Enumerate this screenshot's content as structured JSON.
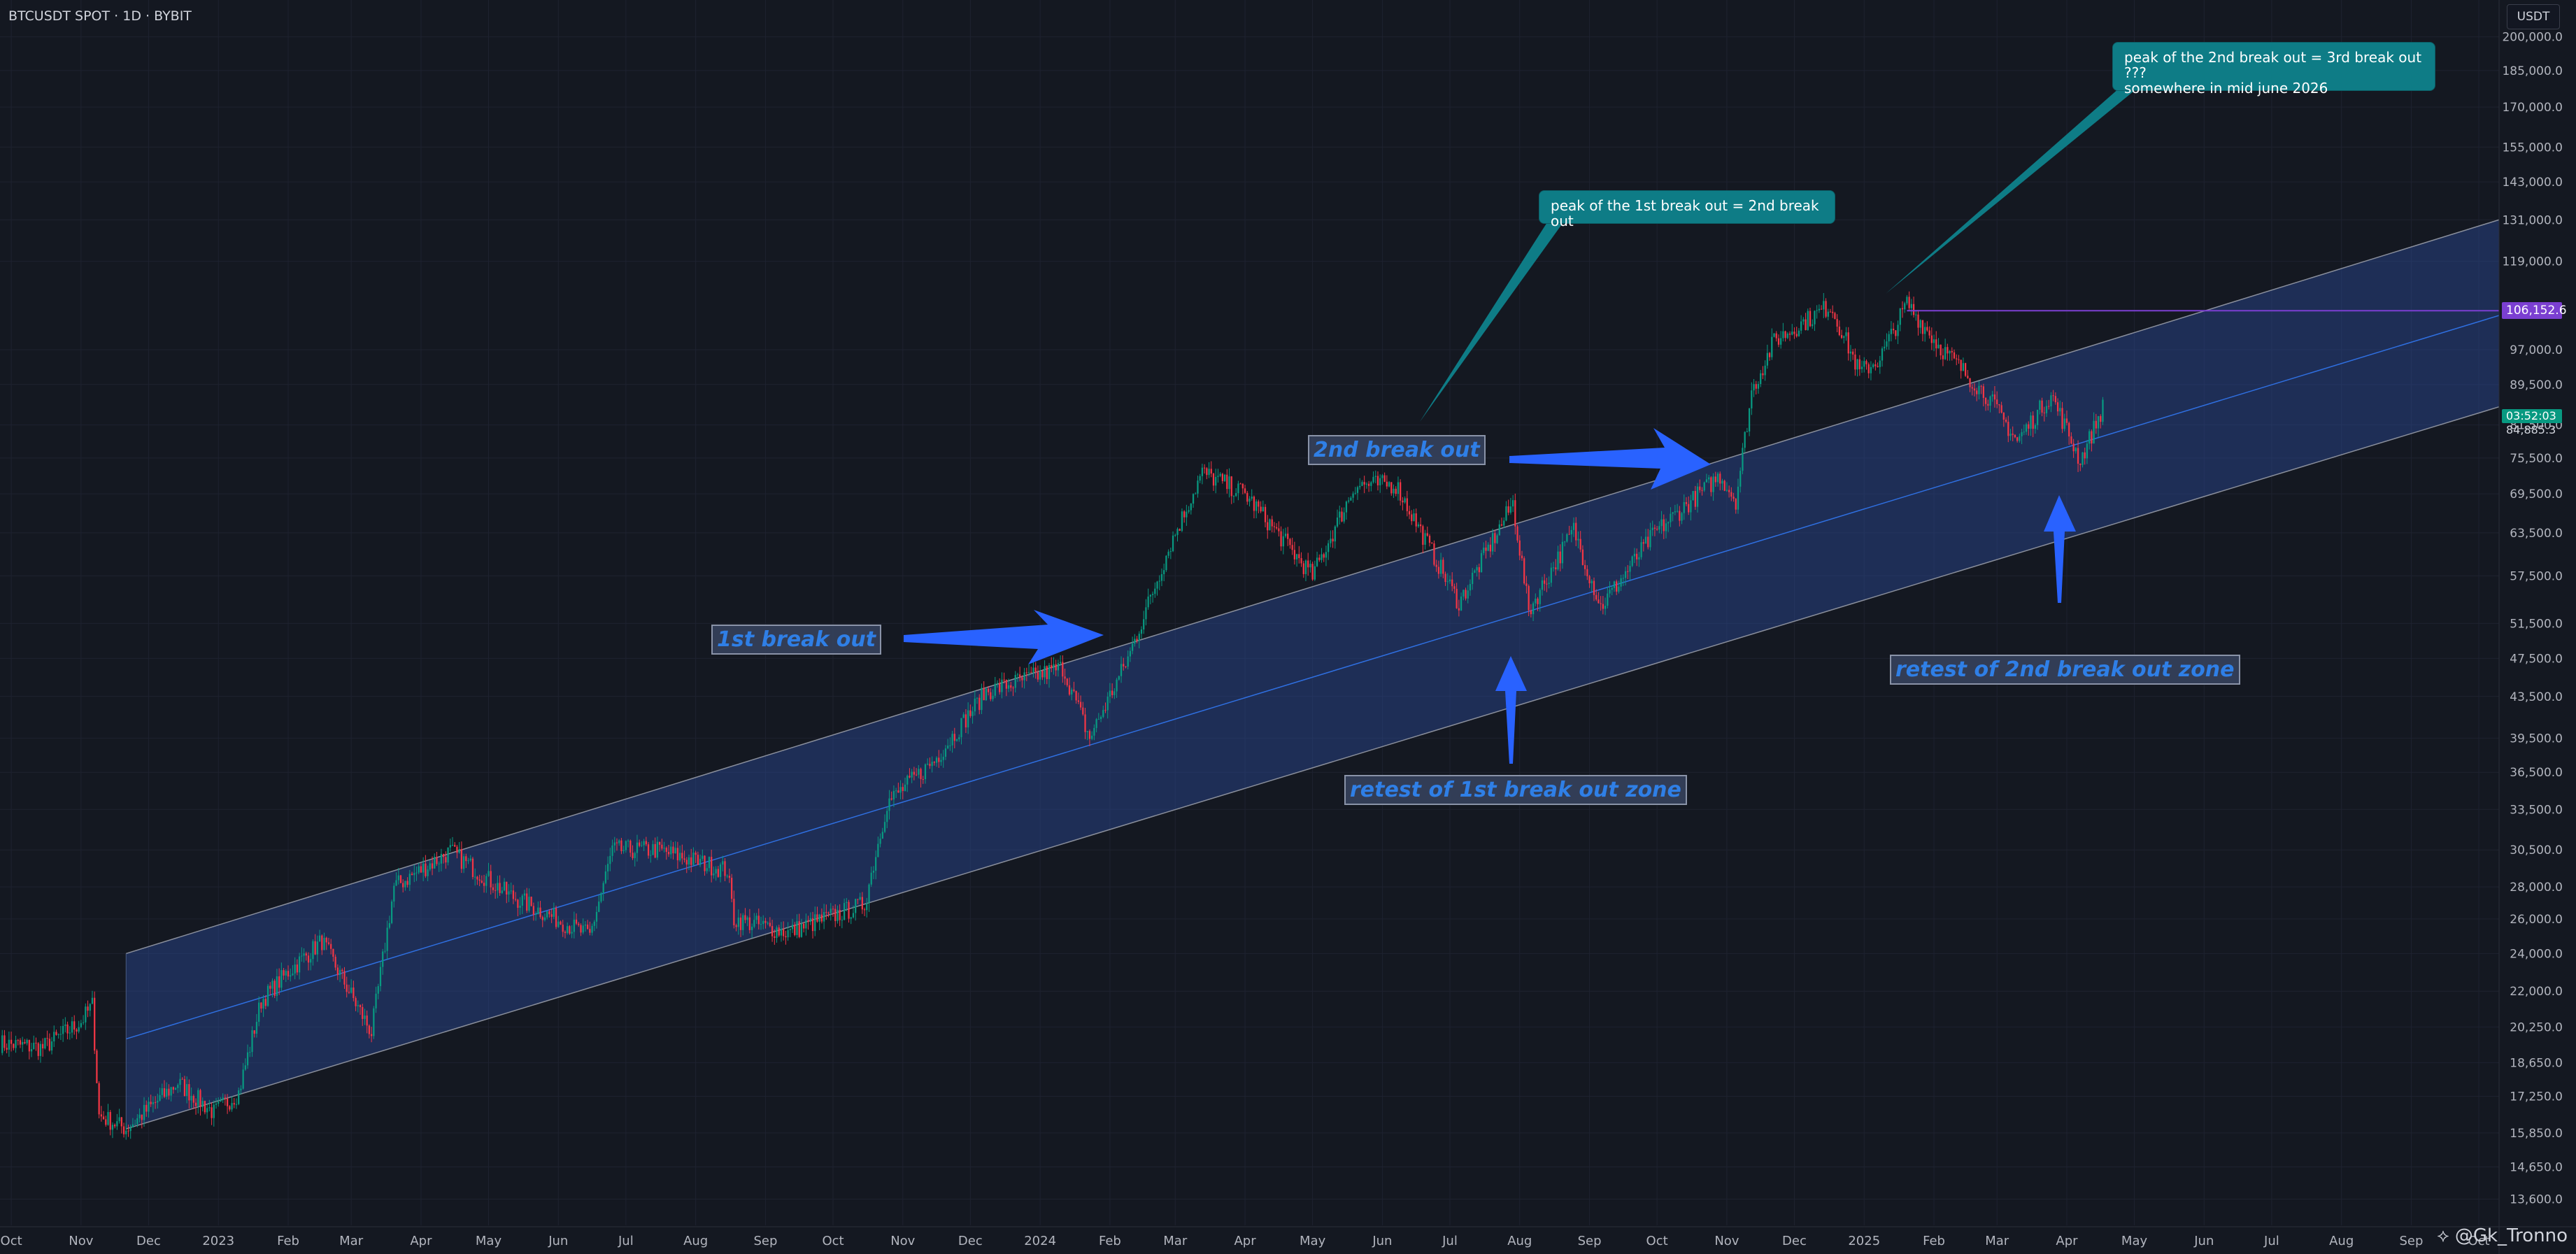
{
  "header": {
    "symbol": "BTCUSDT SPOT · 1D · BYBIT",
    "currency_button": "USDT"
  },
  "price_badges": {
    "level": "106,152.6",
    "last": "84,885.3",
    "countdown": "03:52:03",
    "level_color": "#7b3fd1",
    "last_color": "#089981"
  },
  "annotations": {
    "note_1": "peak of the 1st break out = 2nd break out",
    "note_2": "peak of the 2nd break out = 3rd break out  ???\nsomewhere in mid june 2026",
    "label_1st": "1st break out",
    "label_2nd": "2nd break out",
    "label_retest1": "retest of 1st break out zone",
    "label_retest2": "retest of 2nd break out zone"
  },
  "watermark": "@Gk_Tronno",
  "colors": {
    "background": "#141821",
    "up_candle": "#089981",
    "down_candle": "#f23645",
    "channel_fill": "#2d4ea0",
    "arrow": "#2962ff",
    "note_fill": "#0e7c86"
  },
  "icons": {
    "watermark_logo": "tradingview-logo-icon"
  },
  "chart_data": {
    "type": "candlestick",
    "title": "BTCUSDT SPOT · 1D · BYBIT",
    "y_scale": "log",
    "ylim": [
      12800,
      215000
    ],
    "y_ticks": [
      "200,000.0",
      "185,000.0",
      "170,000.0",
      "155,000.0",
      "143,000.0",
      "131,000.0",
      "119,000.0",
      "97,000.0",
      "89,500.0",
      "81,500.0",
      "75,500.0",
      "69,500.0",
      "63,500.0",
      "57,500.0",
      "51,500.0",
      "47,500.0",
      "43,500.0",
      "39,500.0",
      "36,500.0",
      "33,500.0",
      "30,500.0",
      "28,000.0",
      "26,000.0",
      "24,000.0",
      "22,000.0",
      "20,250.0",
      "18,650.0",
      "17,250.0",
      "15,850.0",
      "14,650.0",
      "13,600.0"
    ],
    "x_ticks": [
      "Oct",
      "Nov",
      "Dec",
      "2023",
      "Feb",
      "Mar",
      "Apr",
      "May",
      "Jun",
      "Jul",
      "Aug",
      "Sep",
      "Oct",
      "Nov",
      "Dec",
      "2024",
      "Feb",
      "Mar",
      "Apr",
      "May",
      "Jun",
      "Jul",
      "Aug",
      "Sep",
      "Oct",
      "Nov",
      "Dec",
      "2025",
      "Feb",
      "Mar",
      "Apr",
      "May",
      "Jun",
      "Jul",
      "Aug",
      "Sep",
      "Oct"
    ],
    "x_range": [
      "2022-09-26",
      "2025-10-10"
    ],
    "series": [
      {
        "points": [
          [
            "2022-09-26",
            19500
          ],
          [
            "2022-10-15",
            19300
          ],
          [
            "2022-11-01",
            20500
          ],
          [
            "2022-11-06",
            21300
          ],
          [
            "2022-11-09",
            16500
          ],
          [
            "2022-11-21",
            16000
          ],
          [
            "2022-12-14",
            17800
          ],
          [
            "2022-12-30",
            16600
          ],
          [
            "2023-01-10",
            17400
          ],
          [
            "2023-01-20",
            21500
          ],
          [
            "2023-02-01",
            23000
          ],
          [
            "2023-02-16",
            24700
          ],
          [
            "2023-03-10",
            20000
          ],
          [
            "2023-03-20",
            28000
          ],
          [
            "2023-04-14",
            30400
          ],
          [
            "2023-05-10",
            27500
          ],
          [
            "2023-06-15",
            25000
          ],
          [
            "2023-06-25",
            30500
          ],
          [
            "2023-07-15",
            30500
          ],
          [
            "2023-08-15",
            29100
          ],
          [
            "2023-08-18",
            26000
          ],
          [
            "2023-09-11",
            25200
          ],
          [
            "2023-10-15",
            26900
          ],
          [
            "2023-10-25",
            34000
          ],
          [
            "2023-11-15",
            37500
          ],
          [
            "2023-12-08",
            44000
          ],
          [
            "2024-01-11",
            46500
          ],
          [
            "2024-01-23",
            39500
          ],
          [
            "2024-02-09",
            47500
          ],
          [
            "2024-02-28",
            62000
          ],
          [
            "2024-03-13",
            73000
          ],
          [
            "2024-04-01",
            69500
          ],
          [
            "2024-05-01",
            57500
          ],
          [
            "2024-05-20",
            71000
          ],
          [
            "2024-06-07",
            71000
          ],
          [
            "2024-07-05",
            54000
          ],
          [
            "2024-07-29",
            68000
          ],
          [
            "2024-08-05",
            53000
          ],
          [
            "2024-08-25",
            64000
          ],
          [
            "2024-09-06",
            53500
          ],
          [
            "2024-09-30",
            63500
          ],
          [
            "2024-10-29",
            72500
          ],
          [
            "2024-11-05",
            68500
          ],
          [
            "2024-11-12",
            88000
          ],
          [
            "2024-11-22",
            99000
          ],
          [
            "2024-12-17",
            107500
          ],
          [
            "2024-12-30",
            92000
          ],
          [
            "2025-01-08",
            95000
          ],
          [
            "2025-01-20",
            108000
          ],
          [
            "2025-02-03",
            98000
          ],
          [
            "2025-02-25",
            87000
          ],
          [
            "2025-03-10",
            78500
          ],
          [
            "2025-03-25",
            87500
          ],
          [
            "2025-04-07",
            75000
          ],
          [
            "2025-04-17",
            84885
          ]
        ]
      }
    ],
    "channel": {
      "upper": [
        [
          "2022-11-21",
          24000
        ],
        [
          "2025-10-10",
          131000
        ]
      ],
      "mid": [
        [
          "2022-11-21",
          19700
        ],
        [
          "2025-10-10",
          105000
        ]
      ],
      "lower": [
        [
          "2022-11-21",
          16000
        ],
        [
          "2025-10-10",
          85000
        ]
      ]
    },
    "horizontal_line": {
      "from": "2025-01-20",
      "value": 106152.6
    },
    "grid": true,
    "legend": "none"
  }
}
